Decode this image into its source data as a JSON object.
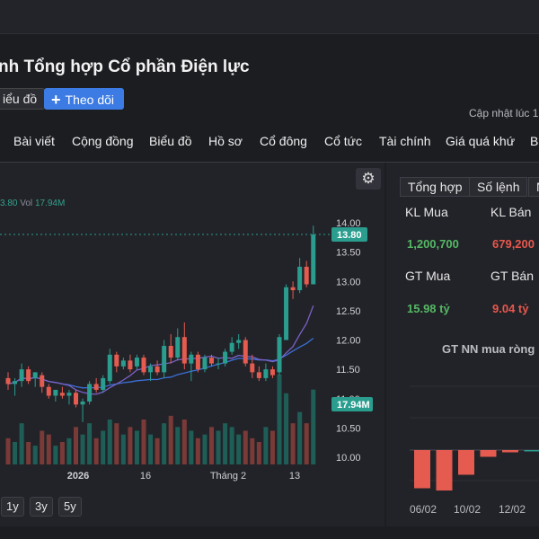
{
  "header": {
    "title": "nh Tổng hợp Cổ phần Điện lực",
    "chart_button": "iểu đồ",
    "follow_button": "Theo dõi",
    "follow_icon": "plus-icon",
    "updated_label": "Cập nhật lúc",
    "updated_value": "1"
  },
  "tabs": [
    "Bài viết",
    "Cộng đồng",
    "Biểu đồ",
    "Hồ sơ",
    "Cổ đông",
    "Cổ tức",
    "Tài chính",
    "Giá quá khứ",
    "B"
  ],
  "chart": {
    "legend_value": "3.80",
    "legend_vol_label": "Vol",
    "legend_vol_value": "17.94M",
    "settings_icon": "gear-icon",
    "range_buttons": [
      "1y",
      "3y",
      "5y"
    ],
    "colors": {
      "up": "#2a9d8f",
      "down": "#e55b50",
      "ma_blue": "#3b6fd8",
      "ma_purple": "#7b61c9"
    }
  },
  "chart_data": {
    "type": "candlestick",
    "price_ticks": [
      "14.00",
      "13.50",
      "13.00",
      "12.50",
      "12.00",
      "11.50",
      "11.00",
      "10.50",
      "10.00"
    ],
    "x_tick_labels": [
      "2026",
      "16",
      "Tháng 2",
      "13"
    ],
    "last_price_label": "13.80",
    "last_volume_label": "17.94M",
    "last_price": 13.8,
    "candles": [
      {
        "o": 11.35,
        "h": 11.45,
        "l": 11.15,
        "c": 11.25
      },
      {
        "o": 11.25,
        "h": 11.35,
        "l": 11.05,
        "c": 11.3
      },
      {
        "o": 11.3,
        "h": 11.6,
        "l": 11.2,
        "c": 11.5
      },
      {
        "o": 11.5,
        "h": 11.55,
        "l": 11.25,
        "c": 11.3
      },
      {
        "o": 11.35,
        "h": 11.45,
        "l": 11.2,
        "c": 11.45
      },
      {
        "o": 11.4,
        "h": 11.45,
        "l": 11.1,
        "c": 11.2
      },
      {
        "o": 11.2,
        "h": 11.25,
        "l": 11.0,
        "c": 11.05
      },
      {
        "o": 11.05,
        "h": 11.15,
        "l": 10.95,
        "c": 11.15
      },
      {
        "o": 11.1,
        "h": 11.2,
        "l": 11.0,
        "c": 11.05
      },
      {
        "o": 11.05,
        "h": 11.15,
        "l": 10.9,
        "c": 11.1
      },
      {
        "o": 11.1,
        "h": 11.15,
        "l": 10.85,
        "c": 10.9
      },
      {
        "o": 10.9,
        "h": 11.0,
        "l": 10.6,
        "c": 10.95
      },
      {
        "o": 10.95,
        "h": 11.3,
        "l": 10.9,
        "c": 11.25
      },
      {
        "o": 11.25,
        "h": 11.35,
        "l": 11.1,
        "c": 11.15
      },
      {
        "o": 11.15,
        "h": 11.4,
        "l": 11.1,
        "c": 11.35
      },
      {
        "o": 11.3,
        "h": 11.85,
        "l": 11.25,
        "c": 11.75
      },
      {
        "o": 11.75,
        "h": 11.8,
        "l": 11.45,
        "c": 11.55
      },
      {
        "o": 11.55,
        "h": 11.7,
        "l": 11.5,
        "c": 11.65
      },
      {
        "o": 11.65,
        "h": 11.75,
        "l": 11.45,
        "c": 11.5
      },
      {
        "o": 11.55,
        "h": 11.75,
        "l": 11.5,
        "c": 11.7
      },
      {
        "o": 11.7,
        "h": 11.75,
        "l": 11.4,
        "c": 11.45
      },
      {
        "o": 11.45,
        "h": 11.6,
        "l": 11.3,
        "c": 11.55
      },
      {
        "o": 11.55,
        "h": 11.65,
        "l": 11.4,
        "c": 11.45
      },
      {
        "o": 11.45,
        "h": 12.0,
        "l": 11.35,
        "c": 11.9
      },
      {
        "o": 11.9,
        "h": 12.1,
        "l": 11.6,
        "c": 11.7
      },
      {
        "o": 11.7,
        "h": 12.2,
        "l": 11.65,
        "c": 12.05
      },
      {
        "o": 12.05,
        "h": 12.3,
        "l": 11.5,
        "c": 11.6
      },
      {
        "o": 11.6,
        "h": 11.8,
        "l": 11.3,
        "c": 11.75
      },
      {
        "o": 11.75,
        "h": 11.8,
        "l": 11.45,
        "c": 11.5
      },
      {
        "o": 11.5,
        "h": 11.75,
        "l": 11.45,
        "c": 11.7
      },
      {
        "o": 11.7,
        "h": 11.75,
        "l": 11.55,
        "c": 11.6
      },
      {
        "o": 11.6,
        "h": 11.7,
        "l": 11.5,
        "c": 11.6
      },
      {
        "o": 11.6,
        "h": 11.85,
        "l": 11.55,
        "c": 11.8
      },
      {
        "o": 11.8,
        "h": 12.05,
        "l": 11.75,
        "c": 11.95
      },
      {
        "o": 11.95,
        "h": 12.1,
        "l": 11.85,
        "c": 12.0
      },
      {
        "o": 12.0,
        "h": 12.05,
        "l": 11.55,
        "c": 11.6
      },
      {
        "o": 11.6,
        "h": 11.75,
        "l": 11.35,
        "c": 11.45
      },
      {
        "o": 11.45,
        "h": 11.55,
        "l": 11.3,
        "c": 11.35
      },
      {
        "o": 11.35,
        "h": 11.6,
        "l": 11.3,
        "c": 11.5
      },
      {
        "o": 11.5,
        "h": 11.55,
        "l": 11.35,
        "c": 11.4
      },
      {
        "o": 11.45,
        "h": 12.1,
        "l": 11.4,
        "c": 12.05
      },
      {
        "o": 12.0,
        "h": 12.95,
        "l": 12.0,
        "c": 12.9
      },
      {
        "o": 12.9,
        "h": 13.0,
        "l": 12.7,
        "c": 12.85
      },
      {
        "o": 12.85,
        "h": 13.4,
        "l": 12.8,
        "c": 13.25
      },
      {
        "o": 13.25,
        "h": 13.35,
        "l": 12.9,
        "c": 12.95
      },
      {
        "o": 12.95,
        "h": 13.95,
        "l": 12.95,
        "c": 13.8
      }
    ],
    "volumes": [
      0.35,
      0.3,
      0.55,
      0.3,
      0.25,
      0.45,
      0.4,
      0.25,
      0.3,
      0.35,
      0.5,
      0.4,
      0.55,
      0.35,
      0.45,
      0.6,
      0.55,
      0.4,
      0.5,
      0.45,
      0.6,
      0.4,
      0.35,
      0.55,
      0.65,
      0.5,
      0.6,
      0.45,
      0.35,
      0.4,
      0.5,
      0.45,
      0.55,
      0.5,
      0.4,
      0.45,
      0.35,
      0.3,
      0.5,
      0.45,
      1.2,
      0.95,
      0.55,
      0.7,
      0.55,
      1.0
    ]
  },
  "side": {
    "tabs": [
      "Tổng hợp",
      "Số lệnh",
      "N"
    ],
    "kl_mua_label": "KL Mua",
    "kl_ban_label": "KL Bán",
    "kl_mua_value": "1,200,700",
    "kl_ban_value": "679,200",
    "gt_mua_label": "GT Mua",
    "gt_ban_label": "GT Bán",
    "gt_mua_value": "15.98 tỷ",
    "gt_ban_value": "9.04 tỷ",
    "nn_title": "GT NN mua ròng",
    "nn_dates": [
      "06/02",
      "10/02",
      "12/02"
    ],
    "nn_bars": [
      -0.85,
      -0.9,
      -0.55,
      -0.15,
      -0.05,
      0.0,
      1.1
    ]
  }
}
